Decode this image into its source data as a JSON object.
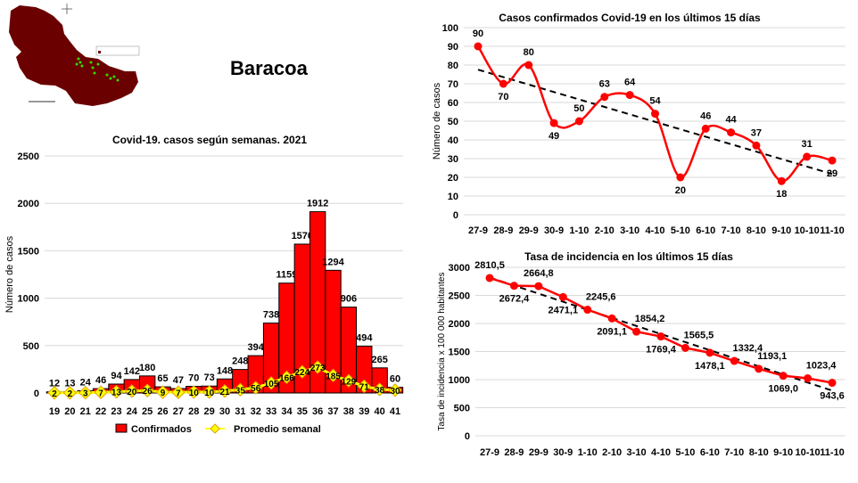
{
  "page_title": "Baracoa",
  "colors": {
    "confirmed": "#ff0000",
    "average": "#ffff00",
    "average_border": "#e0a000",
    "map": "#6b0000",
    "cases_dots": "#33dd00"
  },
  "chart_data": [
    {
      "id": "weekly",
      "type": "bar",
      "title": "Covid-19. casos según semanas. 2021",
      "xlabel": "",
      "ylabel": "Número de casos",
      "ylim": [
        0,
        2500
      ],
      "yticks": [
        0,
        500,
        1000,
        1500,
        2000,
        2500
      ],
      "grid": true,
      "legend_position": "bottom",
      "categories": [
        "19",
        "20",
        "21",
        "22",
        "23",
        "24",
        "25",
        "26",
        "27",
        "28",
        "29",
        "30",
        "31",
        "32",
        "33",
        "34",
        "35",
        "36",
        "37",
        "38",
        "39",
        "40",
        "41"
      ],
      "series": [
        {
          "name": "Confirmados",
          "type": "bar",
          "values": [
            12,
            13,
            24,
            46,
            94,
            142,
            180,
            65,
            47,
            70,
            73,
            148,
            248,
            394,
            738,
            1159,
            1570,
            1912,
            1294,
            906,
            494,
            265,
            60
          ]
        },
        {
          "name": "Promedio semanal",
          "type": "line",
          "values": [
            2,
            2,
            3,
            7,
            13,
            20,
            26,
            9,
            7,
            10,
            10,
            21,
            35,
            56,
            105,
            166,
            224,
            273,
            185,
            129,
            71,
            38,
            30
          ]
        }
      ]
    },
    {
      "id": "cases15",
      "type": "line",
      "title": "Casos confirmados  Covid-19 en los últimos 15 días",
      "xlabel": "",
      "ylabel": "Número de casos",
      "ylim": [
        0,
        100
      ],
      "yticks": [
        0,
        10,
        20,
        30,
        40,
        50,
        60,
        70,
        80,
        90,
        100
      ],
      "grid": true,
      "trendline": "linear",
      "categories": [
        "27-9",
        "28-9",
        "29-9",
        "30-9",
        "1-10",
        "2-10",
        "3-10",
        "4-10",
        "5-10",
        "6-10",
        "7-10",
        "8-10",
        "9-10",
        "10-10",
        "11-10"
      ],
      "series": [
        {
          "name": "Casos",
          "values": [
            90,
            70,
            80,
            49,
            50,
            63,
            64,
            54,
            20,
            46,
            44,
            37,
            18,
            31,
            29
          ],
          "labels": [
            "90",
            "70",
            "80",
            "49",
            "50",
            "63",
            "64",
            "54",
            "20",
            "46",
            "44",
            "37",
            "18",
            "31",
            "29"
          ]
        }
      ]
    },
    {
      "id": "incidence",
      "type": "line",
      "title": "Tasa de incidencia  en los últimos 15 días",
      "xlabel": "",
      "ylabel": "Tasa de incidencia x 100 000 habitantes",
      "ylim": [
        0,
        3000
      ],
      "yticks": [
        0,
        500,
        1000,
        1500,
        2000,
        2500,
        3000
      ],
      "grid": true,
      "trendline": "linear",
      "categories": [
        "27-9",
        "28-9",
        "29-9",
        "30-9",
        "1-10",
        "2-10",
        "3-10",
        "4-10",
        "5-10",
        "6-10",
        "7-10",
        "8-10",
        "9-10",
        "10-10",
        "11-10"
      ],
      "series": [
        {
          "name": "Tasa",
          "values": [
            2810.5,
            2672.4,
            2664.8,
            2471.1,
            2245.6,
            2091.1,
            1854.2,
            1769.4,
            1565.5,
            1478.1,
            1332.4,
            1193.1,
            1069.0,
            1023.4,
            943.6
          ],
          "labels": [
            "2810,5",
            "2672,4",
            "2664,8",
            "2471,1",
            "2245,6",
            "2091,1",
            "1854,2",
            "1769,4",
            "1565,5",
            "1478,1",
            "1332,4",
            "1193,1",
            "1069,0",
            "1023,4",
            "943,6"
          ]
        }
      ]
    }
  ]
}
